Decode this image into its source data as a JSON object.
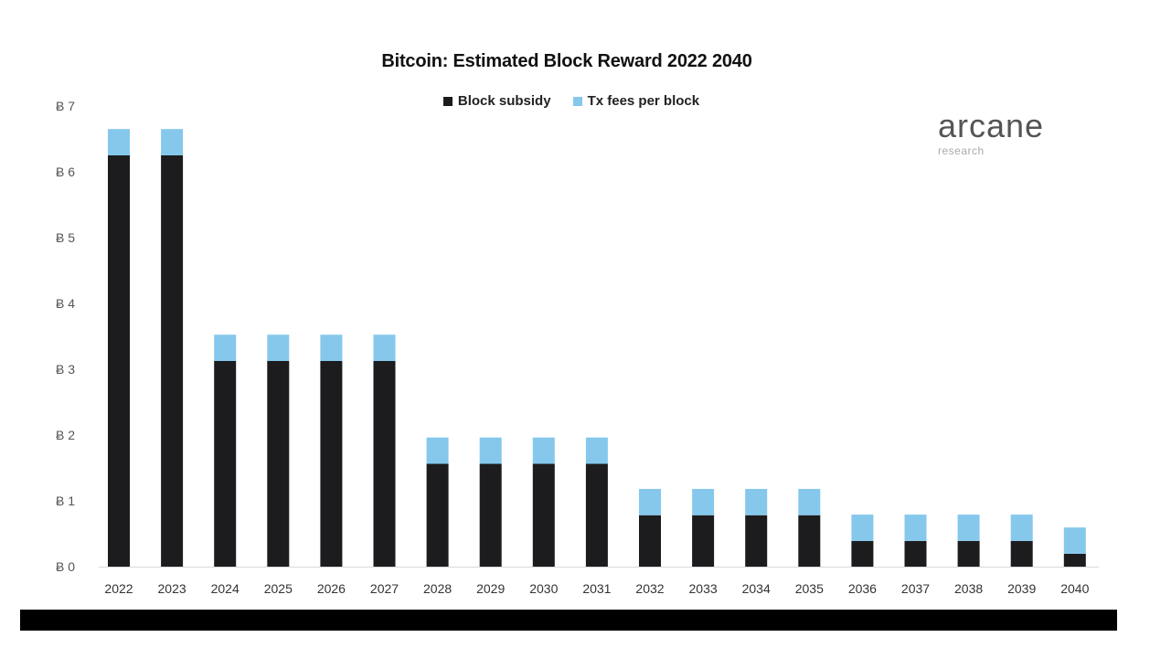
{
  "chart_data": {
    "type": "bar",
    "stacked": true,
    "title": "Bitcoin: Estimated Block Reward  2022 2040",
    "categories": [
      "2022",
      "2023",
      "2024",
      "2025",
      "2026",
      "2027",
      "2028",
      "2029",
      "2030",
      "2031",
      "2032",
      "2033",
      "2034",
      "2035",
      "2036",
      "2037",
      "2038",
      "2039",
      "2040"
    ],
    "series": [
      {
        "name": "Block subsidy",
        "color": "#1c1c1e",
        "values": [
          6.25,
          6.25,
          3.125,
          3.125,
          3.125,
          3.125,
          1.5625,
          1.5625,
          1.5625,
          1.5625,
          0.78125,
          0.78125,
          0.78125,
          0.78125,
          0.390625,
          0.390625,
          0.390625,
          0.390625,
          0.1953125
        ]
      },
      {
        "name": "Tx fees per block",
        "color": "#85c8ec",
        "values": [
          0.4,
          0.4,
          0.4,
          0.4,
          0.4,
          0.4,
          0.4,
          0.4,
          0.4,
          0.4,
          0.4,
          0.4,
          0.4,
          0.4,
          0.4,
          0.4,
          0.4,
          0.4,
          0.4
        ]
      }
    ],
    "y_ticks": [
      "Ƀ 0",
      "Ƀ 1",
      "Ƀ 2",
      "Ƀ 3",
      "Ƀ 4",
      "Ƀ 5",
      "Ƀ 6",
      "Ƀ 7"
    ],
    "ylim": [
      0,
      7
    ],
    "grid": false,
    "legend_position": "top-center"
  },
  "brand": {
    "name": "arcane",
    "sub": "research"
  }
}
